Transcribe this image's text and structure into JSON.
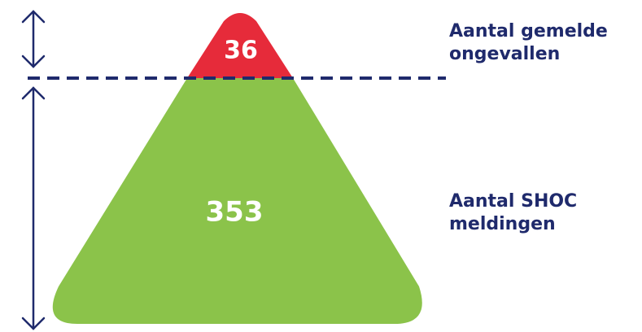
{
  "pyramid": {
    "top": {
      "value": "36",
      "label_line1": "Aantal gemelde",
      "label_line2": "ongevallen",
      "color": "#e62b3a"
    },
    "bottom": {
      "value": "353",
      "label_line1": "Aantal SHOC",
      "label_line2": "meldingen",
      "color": "#8bc34a"
    },
    "accent_color": "#1f2a6c"
  }
}
